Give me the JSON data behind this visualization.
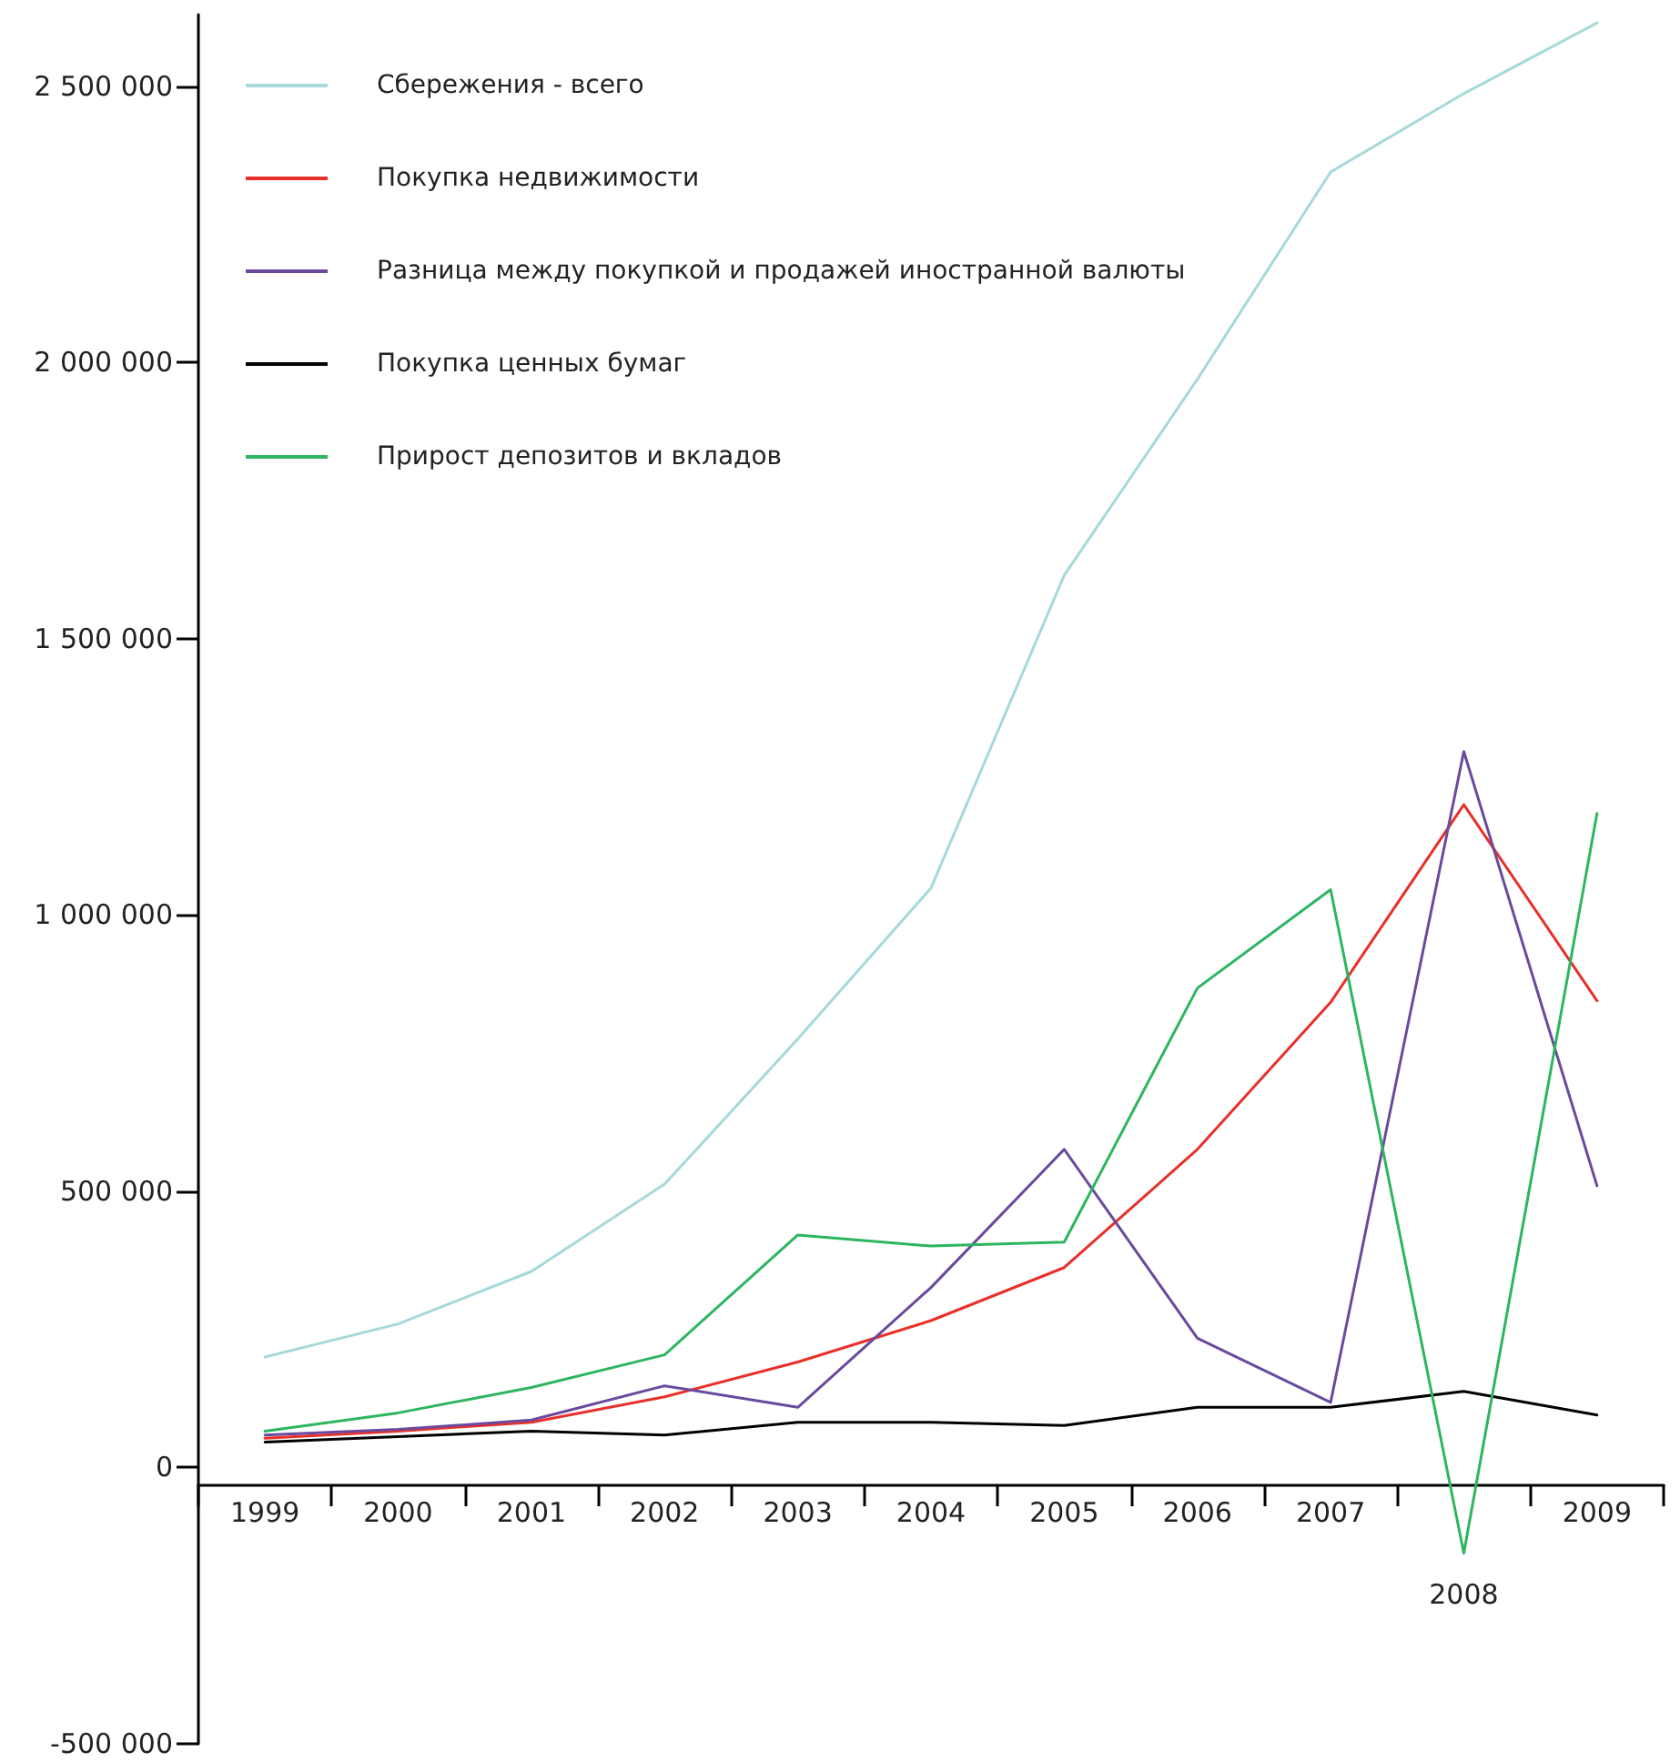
{
  "chart_data": {
    "type": "line",
    "categories": [
      "1999",
      "2000",
      "2001",
      "2002",
      "2003",
      "2004",
      "2005",
      "2006",
      "2007",
      "2008",
      "2009"
    ],
    "series": [
      {
        "name": "Сбережения - всего",
        "color": "#a6d9d9",
        "values": [
          200000,
          260000,
          355000,
          513000,
          776000,
          1049000,
          1615000,
          1970000,
          2345000,
          2487000,
          2615000
        ]
      },
      {
        "name": "Покупка недвижимости",
        "color": "#e8302a",
        "values": [
          53000,
          66000,
          82000,
          128000,
          191000,
          266000,
          362000,
          576000,
          842000,
          1200000,
          845000
        ]
      },
      {
        "name": "Разница между покупкой и продажей иностранной валюты",
        "color": "#6a4a9c",
        "values": [
          59000,
          69000,
          86000,
          148000,
          109000,
          326000,
          576000,
          234000,
          118000,
          1296000,
          510000
        ]
      },
      {
        "name": "Покупка ценных бумаг",
        "color": "#000000",
        "values": [
          46000,
          56000,
          66000,
          59000,
          82000,
          82000,
          76000,
          109000,
          109000,
          138000,
          95000
        ]
      },
      {
        "name": "Прирост депозитов и вкладов",
        "color": "#2db560",
        "values": [
          66000,
          99000,
          145000,
          204000,
          421000,
          401000,
          408000,
          868000,
          1046000,
          -155000,
          1184000
        ]
      }
    ],
    "ylim": [
      -500000,
      2630000
    ],
    "yticks": [
      {
        "value": -500000,
        "label": "-500 000"
      },
      {
        "value": 0,
        "label": "0"
      },
      {
        "value": 500000,
        "label": "500 000"
      },
      {
        "value": 1000000,
        "label": "1 000 000"
      },
      {
        "value": 1500000,
        "label": "1 500 000"
      },
      {
        "value": 2000000,
        "label": "2 000 000"
      },
      {
        "value": 2500000,
        "label": "2 500 000"
      }
    ],
    "grid": false,
    "legend": "top left",
    "marker": "none",
    "line_style": "solid"
  }
}
